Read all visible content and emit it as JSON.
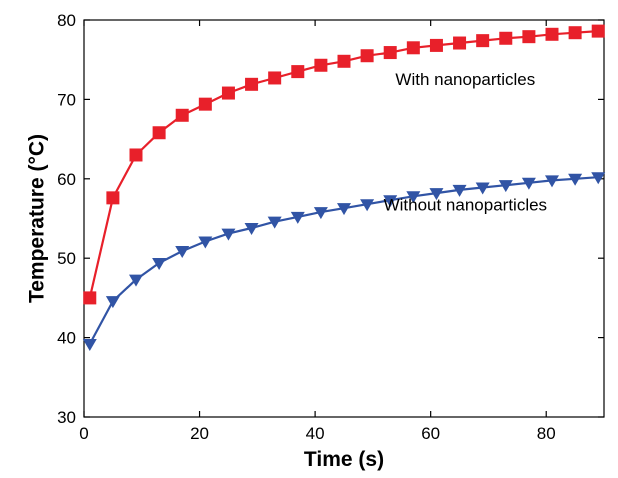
{
  "chart_data": {
    "type": "line",
    "title": "",
    "xlabel": "Time (s)",
    "ylabel": "Temperature (°C)",
    "xlim": [
      0,
      90
    ],
    "ylim": [
      30,
      80
    ],
    "xticks": [
      0,
      20,
      40,
      60,
      80
    ],
    "yticks": [
      30,
      40,
      50,
      60,
      70,
      80
    ],
    "grid": false,
    "legend": "none",
    "series": [
      {
        "color": "#e8202a",
        "marker": "square",
        "x": [
          1,
          5,
          9,
          13,
          17,
          21,
          25,
          29,
          33,
          37,
          41,
          45,
          49,
          53,
          57,
          61,
          65,
          69,
          73,
          77,
          81,
          85,
          89
        ],
        "y": [
          45.0,
          57.6,
          63.0,
          65.8,
          68.0,
          69.4,
          70.8,
          71.9,
          72.7,
          73.5,
          74.3,
          74.8,
          75.5,
          75.9,
          76.5,
          76.8,
          77.1,
          77.4,
          77.7,
          77.9,
          78.2,
          78.4,
          78.6
        ]
      },
      {
        "color": "#3154a5",
        "marker": "triangle-down",
        "x": [
          1,
          5,
          9,
          13,
          17,
          21,
          25,
          29,
          33,
          37,
          41,
          45,
          49,
          53,
          57,
          61,
          65,
          69,
          73,
          77,
          81,
          85,
          89
        ],
        "y": [
          39.2,
          44.6,
          47.3,
          49.4,
          50.9,
          52.1,
          53.1,
          53.8,
          54.6,
          55.2,
          55.8,
          56.3,
          56.8,
          57.3,
          57.8,
          58.2,
          58.6,
          58.9,
          59.2,
          59.5,
          59.8,
          60.0,
          60.2
        ]
      }
    ],
    "annotations": [
      {
        "text": "With nanoparticles",
        "x": 66,
        "y": 71.8
      },
      {
        "text": "Without nanoparticles",
        "x": 66,
        "y": 56.0
      }
    ]
  }
}
